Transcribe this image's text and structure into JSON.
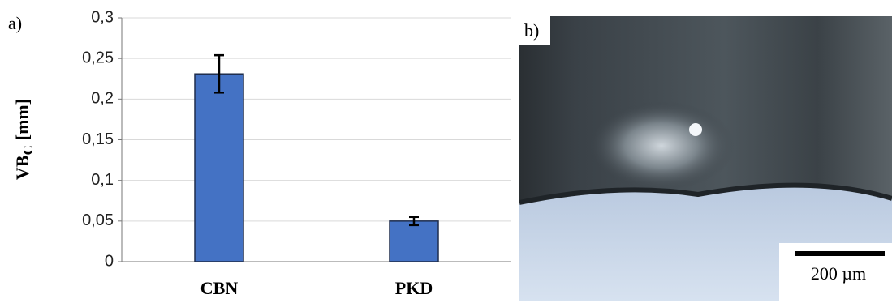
{
  "chart_data": {
    "type": "bar",
    "panel_label": "a)",
    "ylabel": "VB",
    "ylabel_sub": "C",
    "ylabel_unit": "[mm]",
    "categories": [
      "CBN",
      "PKD"
    ],
    "values": [
      0.231,
      0.05
    ],
    "errors": [
      0.023,
      0.005
    ],
    "color": "#4472c4",
    "ylim": [
      0,
      0.3
    ],
    "yticks": [
      {
        "value": 0,
        "label": "0"
      },
      {
        "value": 0.05,
        "label": "0,05"
      },
      {
        "value": 0.1,
        "label": "0,1"
      },
      {
        "value": 0.15,
        "label": "0,15"
      },
      {
        "value": 0.2,
        "label": "0,2"
      },
      {
        "value": 0.25,
        "label": "0,25"
      },
      {
        "value": 0.3,
        "label": "0,3"
      }
    ],
    "grid": true
  },
  "image": {
    "panel_label": "b)",
    "scale_bar": "200 µm"
  }
}
